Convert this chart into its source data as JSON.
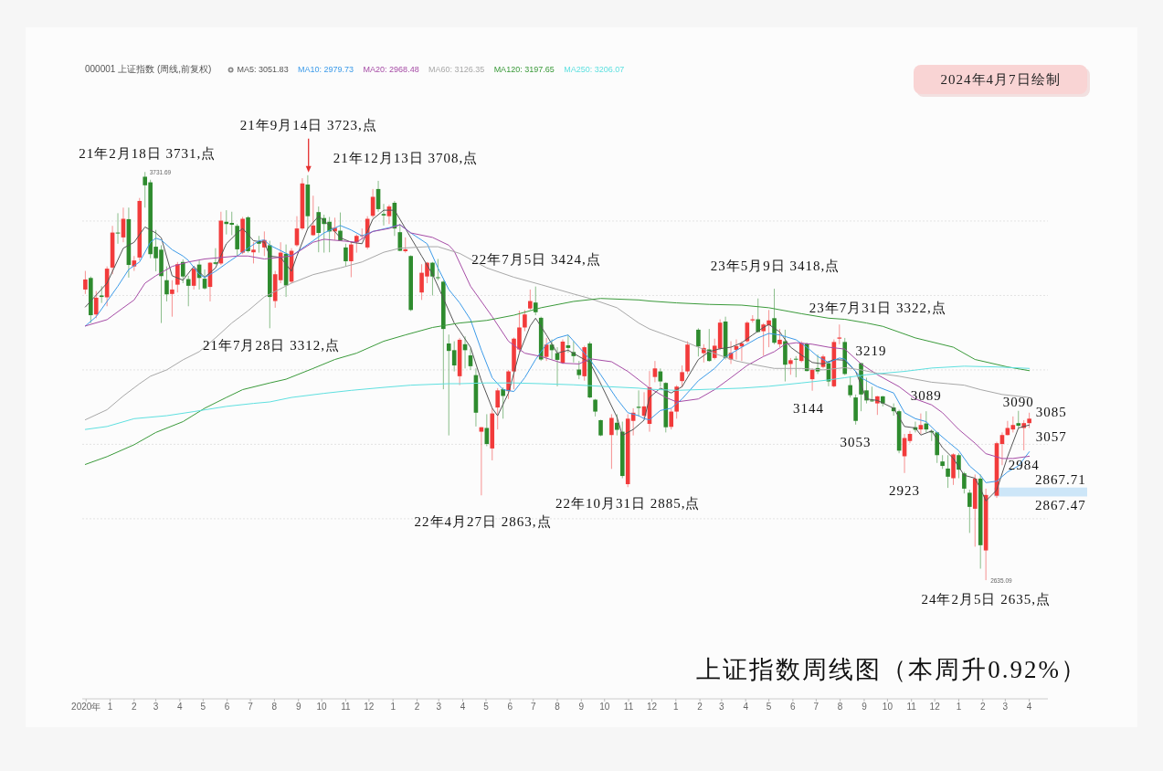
{
  "chart_data": {
    "type": "candlestick",
    "title": "上证指数周线图（本周升0.92%）",
    "legend_title": "000001 上证指数 (周线,前复权)",
    "legend": "top left",
    "grid": "y",
    "tick_labels": "x",
    "xlim": [
      "2020-11-26",
      "2024-04-25"
    ],
    "yticks": [
      {
        "value": 2800,
        "label": null
      },
      {
        "value": 3000,
        "label": null
      },
      {
        "value": 3200,
        "label": null
      },
      {
        "value": 3400,
        "label": null
      },
      {
        "value": 3600,
        "label": null
      }
    ],
    "xticks": [
      {
        "value": "2020-12",
        "label": "2020年"
      },
      {
        "value": "2021-01",
        "label": "1"
      },
      {
        "value": "2021-02",
        "label": "2"
      },
      {
        "value": "2021-03",
        "label": "3"
      },
      {
        "value": "2021-04",
        "label": "4"
      },
      {
        "value": "2021-05",
        "label": "5"
      },
      {
        "value": "2021-06",
        "label": "6"
      },
      {
        "value": "2021-07",
        "label": "7"
      },
      {
        "value": "2021-08",
        "label": "8"
      },
      {
        "value": "2021-09",
        "label": "9"
      },
      {
        "value": "2021-10",
        "label": "10"
      },
      {
        "value": "2021-11",
        "label": "11"
      },
      {
        "value": "2021-12",
        "label": "12"
      },
      {
        "value": "2022-01",
        "label": "1"
      },
      {
        "value": "2022-02",
        "label": "2"
      },
      {
        "value": "2022-03",
        "label": "3"
      },
      {
        "value": "2022-04",
        "label": "4"
      },
      {
        "value": "2022-05",
        "label": "5"
      },
      {
        "value": "2022-06",
        "label": "6"
      },
      {
        "value": "2022-07",
        "label": "7"
      },
      {
        "value": "2022-08",
        "label": "8"
      },
      {
        "value": "2022-09",
        "label": "9"
      },
      {
        "value": "2022-10",
        "label": "10"
      },
      {
        "value": "2022-11",
        "label": "11"
      },
      {
        "value": "2022-12",
        "label": "12"
      },
      {
        "value": "2023-01",
        "label": "1"
      },
      {
        "value": "2023-02",
        "label": "2"
      },
      {
        "value": "2023-03",
        "label": "3"
      },
      {
        "value": "2023-04",
        "label": "4"
      },
      {
        "value": "2023-05",
        "label": "5"
      },
      {
        "value": "2023-06",
        "label": "6"
      },
      {
        "value": "2023-07",
        "label": "7"
      },
      {
        "value": "2023-08",
        "label": "8"
      },
      {
        "value": "2023-09",
        "label": "9"
      },
      {
        "value": "2023-10",
        "label": "10"
      },
      {
        "value": "2023-11",
        "label": "11"
      },
      {
        "value": "2023-12",
        "label": "12"
      },
      {
        "value": "2024-01",
        "label": "1"
      },
      {
        "value": "2024-02",
        "label": "2"
      },
      {
        "value": "2024-03",
        "label": "3"
      },
      {
        "value": "2024-04",
        "label": "4"
      }
    ],
    "x": [
      "2020-11-30",
      "2020-12-07",
      "2020-12-14",
      "2020-12-21",
      "2020-12-28",
      "2021-01-04",
      "2021-01-11",
      "2021-01-18",
      "2021-01-25",
      "2021-02-01",
      "2021-02-08",
      "2021-02-15",
      "2021-02-22",
      "2021-03-01",
      "2021-03-08",
      "2021-03-15",
      "2021-03-22",
      "2021-03-29",
      "2021-04-05",
      "2021-04-12",
      "2021-04-19",
      "2021-04-26",
      "2021-05-03",
      "2021-05-10",
      "2021-05-17",
      "2021-05-24",
      "2021-05-31",
      "2021-06-07",
      "2021-06-14",
      "2021-06-21",
      "2021-06-28",
      "2021-07-05",
      "2021-07-12",
      "2021-07-19",
      "2021-07-26",
      "2021-08-02",
      "2021-08-09",
      "2021-08-16",
      "2021-08-23",
      "2021-08-30",
      "2021-09-06",
      "2021-09-13",
      "2021-09-20",
      "2021-09-27",
      "2021-10-04",
      "2021-10-11",
      "2021-10-18",
      "2021-10-25",
      "2021-11-01",
      "2021-11-08",
      "2021-11-15",
      "2021-11-22",
      "2021-11-29",
      "2021-12-06",
      "2021-12-13",
      "2021-12-20",
      "2021-12-27",
      "2022-01-03",
      "2022-01-10",
      "2022-01-17",
      "2022-01-24",
      "2022-02-07",
      "2022-02-14",
      "2022-02-21",
      "2022-02-28",
      "2022-03-07",
      "2022-03-14",
      "2022-03-21",
      "2022-03-28",
      "2022-04-04",
      "2022-04-11",
      "2022-04-18",
      "2022-04-25",
      "2022-05-02",
      "2022-05-09",
      "2022-05-16",
      "2022-05-23",
      "2022-05-30",
      "2022-06-06",
      "2022-06-13",
      "2022-06-20",
      "2022-06-27",
      "2022-07-04",
      "2022-07-11",
      "2022-07-18",
      "2022-07-25",
      "2022-08-01",
      "2022-08-08",
      "2022-08-15",
      "2022-08-22",
      "2022-08-29",
      "2022-09-05",
      "2022-09-12",
      "2022-09-19",
      "2022-09-26",
      "2022-10-10",
      "2022-10-17",
      "2022-10-24",
      "2022-10-31",
      "2022-11-07",
      "2022-11-14",
      "2022-11-21",
      "2022-11-28",
      "2022-12-05",
      "2022-12-12",
      "2022-12-19",
      "2022-12-26",
      "2023-01-02",
      "2023-01-09",
      "2023-01-16",
      "2023-01-30",
      "2023-02-06",
      "2023-02-13",
      "2023-02-20",
      "2023-02-27",
      "2023-03-06",
      "2023-03-13",
      "2023-03-20",
      "2023-03-27",
      "2023-04-03",
      "2023-04-10",
      "2023-04-17",
      "2023-04-24",
      "2023-05-01",
      "2023-05-08",
      "2023-05-15",
      "2023-05-22",
      "2023-05-29",
      "2023-06-05",
      "2023-06-12",
      "2023-06-19",
      "2023-06-26",
      "2023-07-03",
      "2023-07-10",
      "2023-07-17",
      "2023-07-24",
      "2023-07-31",
      "2023-08-07",
      "2023-08-14",
      "2023-08-21",
      "2023-08-28",
      "2023-09-04",
      "2023-09-11",
      "2023-09-18",
      "2023-09-25",
      "2023-10-09",
      "2023-10-16",
      "2023-10-23",
      "2023-10-30",
      "2023-11-06",
      "2023-11-13",
      "2023-11-20",
      "2023-11-27",
      "2023-12-04",
      "2023-12-11",
      "2023-12-18",
      "2023-12-25",
      "2024-01-01",
      "2024-01-08",
      "2024-01-15",
      "2024-01-22",
      "2024-01-29",
      "2024-02-05",
      "2024-02-19",
      "2024-02-26",
      "2024-03-04",
      "2024-03-11",
      "2024-03-18",
      "2024-03-25",
      "2024-04-01"
    ],
    "ohlc": [
      [
        3416,
        3466,
        3404,
        3443
      ],
      [
        3447,
        3451,
        3326,
        3347
      ],
      [
        3349,
        3412,
        3339,
        3394
      ],
      [
        3400,
        3425,
        3380,
        3396
      ],
      [
        3395,
        3478,
        3371,
        3472
      ],
      [
        3475,
        3587,
        3457,
        3569
      ],
      [
        3569,
        3621,
        3539,
        3567
      ],
      [
        3556,
        3636,
        3543,
        3606
      ],
      [
        3605,
        3636,
        3448,
        3482
      ],
      [
        3478,
        3506,
        3466,
        3494
      ],
      [
        3502,
        3662,
        3494,
        3654
      ],
      [
        3719,
        3731.69,
        3636,
        3696
      ],
      [
        3704,
        3711,
        3500,
        3511
      ],
      [
        3531,
        3576,
        3465,
        3500
      ],
      [
        3523,
        3535,
        3326,
        3452
      ],
      [
        3441,
        3478,
        3384,
        3403
      ],
      [
        3404,
        3441,
        3343,
        3416
      ],
      [
        3429,
        3490,
        3408,
        3484
      ],
      [
        3490,
        3497,
        3433,
        3451
      ],
      [
        3444,
        3453,
        3371,
        3426
      ],
      [
        3426,
        3478,
        3416,
        3472
      ],
      [
        3483,
        3494,
        3416,
        3447
      ],
      [
        3445,
        3470,
        3416,
        3419
      ],
      [
        3423,
        3490,
        3384,
        3488
      ],
      [
        3489,
        3527,
        3482,
        3485
      ],
      [
        3486,
        3625,
        3482,
        3601
      ],
      [
        3598,
        3629,
        3564,
        3592
      ],
      [
        3595,
        3625,
        3562,
        3590
      ],
      [
        3587,
        3592,
        3506,
        3524
      ],
      [
        3515,
        3611,
        3511,
        3606
      ],
      [
        3610,
        3613,
        3515,
        3519
      ],
      [
        3516,
        3543,
        3486,
        3523
      ],
      [
        3544,
        3560,
        3515,
        3539
      ],
      [
        3529,
        3572,
        3506,
        3549
      ],
      [
        3535,
        3547,
        3312,
        3396
      ],
      [
        3385,
        3466,
        3367,
        3457
      ],
      [
        3441,
        3543,
        3433,
        3515
      ],
      [
        3512,
        3537,
        3396,
        3427
      ],
      [
        3437,
        3527,
        3433,
        3520
      ],
      [
        3535,
        3613,
        3531,
        3580
      ],
      [
        3580,
        3715,
        3576,
        3701
      ],
      [
        3698,
        3723,
        3580,
        3613
      ],
      [
        3562,
        3668,
        3560,
        3588
      ],
      [
        3624,
        3639,
        3516,
        3568
      ],
      [
        3608,
        3617,
        3515,
        3592
      ],
      [
        3598,
        3611,
        3516,
        3572
      ],
      [
        3572,
        3609,
        3549,
        3582
      ],
      [
        3574,
        3623,
        3547,
        3547
      ],
      [
        3529,
        3539,
        3478,
        3492
      ],
      [
        3492,
        3546,
        3449,
        3537
      ],
      [
        3543,
        3564,
        3515,
        3560
      ],
      [
        3560,
        3580,
        3550,
        3562
      ],
      [
        3529,
        3613,
        3524,
        3606
      ],
      [
        3614,
        3686,
        3609,
        3665
      ],
      [
        3686,
        3708,
        3625,
        3632
      ],
      [
        3619,
        3646,
        3588,
        3615
      ],
      [
        3613,
        3644,
        3592,
        3639
      ],
      [
        3649,
        3654,
        3560,
        3580
      ],
      [
        3570,
        3592,
        3519,
        3520
      ],
      [
        3519,
        3556,
        3515,
        3524
      ],
      [
        3506,
        3508,
        3358,
        3361
      ],
      [
        3408,
        3484,
        3388,
        3461
      ],
      [
        3451,
        3490,
        3433,
        3488
      ],
      [
        3488,
        3490,
        3400,
        3451
      ],
      [
        3449,
        3498,
        3441,
        3447
      ],
      [
        3437,
        3441,
        3148,
        3310
      ],
      [
        3271,
        3295,
        3024,
        3251
      ],
      [
        3253,
        3277,
        3196,
        3212
      ],
      [
        3183,
        3286,
        3159,
        3281
      ],
      [
        3269,
        3290,
        3204,
        3253
      ],
      [
        3239,
        3257,
        3200,
        3210
      ],
      [
        3186,
        3204,
        3048,
        3085
      ],
      [
        3034,
        3046,
        2863,
        3046
      ],
      [
        3044,
        3081,
        2995,
        3001
      ],
      [
        2989,
        3097,
        2957,
        3083
      ],
      [
        3099,
        3151,
        3040,
        3145
      ],
      [
        3148,
        3153,
        3069,
        3130
      ],
      [
        3143,
        3200,
        3122,
        3196
      ],
      [
        3196,
        3287,
        3148,
        3284
      ],
      [
        3255,
        3359,
        3246,
        3314
      ],
      [
        3314,
        3361,
        3304,
        3349
      ],
      [
        3365,
        3416,
        3361,
        3385
      ],
      [
        3381,
        3424,
        3347,
        3355
      ],
      [
        3340,
        3343,
        3224,
        3228
      ],
      [
        3235,
        3286,
        3224,
        3268
      ],
      [
        3268,
        3282,
        3228,
        3253
      ],
      [
        3245,
        3261,
        3156,
        3227
      ],
      [
        3219,
        3282,
        3216,
        3276
      ],
      [
        3266,
        3294,
        3246,
        3259
      ],
      [
        3248,
        3277,
        3220,
        3237
      ],
      [
        3201,
        3224,
        3175,
        3186
      ],
      [
        3183,
        3265,
        3171,
        3261
      ],
      [
        3271,
        3276,
        3124,
        3126
      ],
      [
        3120,
        3122,
        3075,
        3088
      ],
      [
        3065,
        3066,
        3022,
        3024
      ],
      [
        3025,
        3081,
        2934,
        3071
      ],
      [
        3058,
        3081,
        3024,
        3039
      ],
      [
        3034,
        3061,
        2909,
        2915
      ],
      [
        2893,
        3081,
        2885,
        3069
      ],
      [
        3063,
        3097,
        3024,
        3085
      ],
      [
        3101,
        3145,
        3075,
        3098
      ],
      [
        3077,
        3140,
        3069,
        3102
      ],
      [
        3055,
        3197,
        3034,
        3153
      ],
      [
        3181,
        3224,
        3167,
        3204
      ],
      [
        3196,
        3204,
        3155,
        3169
      ],
      [
        3165,
        3167,
        3032,
        3046
      ],
      [
        3047,
        3096,
        3040,
        3088
      ],
      [
        3088,
        3159,
        3069,
        3155
      ],
      [
        3170,
        3212,
        3153,
        3194
      ],
      [
        3196,
        3277,
        3189,
        3268
      ],
      [
        3308,
        3312,
        3236,
        3263
      ],
      [
        3245,
        3269,
        3220,
        3259
      ],
      [
        3255,
        3310,
        3222,
        3224
      ],
      [
        3232,
        3284,
        3228,
        3265
      ],
      [
        3257,
        3336,
        3253,
        3327
      ],
      [
        3330,
        3343,
        3228,
        3232
      ],
      [
        3228,
        3277,
        3216,
        3246
      ],
      [
        3254,
        3282,
        3228,
        3264
      ],
      [
        3263,
        3277,
        3224,
        3271
      ],
      [
        3277,
        3331,
        3273,
        3327
      ],
      [
        3333,
        3347,
        3327,
        3336
      ],
      [
        3336,
        3392,
        3300,
        3302
      ],
      [
        3304,
        3326,
        3238,
        3322
      ],
      [
        3320,
        3361,
        3261,
        3333
      ],
      [
        3339,
        3418,
        3269,
        3273
      ],
      [
        3269,
        3310,
        3261,
        3281
      ],
      [
        3277,
        3308,
        3169,
        3214
      ],
      [
        3216,
        3232,
        3187,
        3226
      ],
      [
        3230,
        3237,
        3180,
        3228
      ],
      [
        3224,
        3277,
        3220,
        3272
      ],
      [
        3271,
        3273,
        3196,
        3197
      ],
      [
        3175,
        3204,
        3144,
        3200
      ],
      [
        3205,
        3241,
        3189,
        3196
      ],
      [
        3208,
        3241,
        3204,
        3236
      ],
      [
        3218,
        3224,
        3156,
        3169
      ],
      [
        3156,
        3282,
        3153,
        3275
      ],
      [
        3284,
        3322,
        3269,
        3287
      ],
      [
        3275,
        3286,
        3186,
        3189
      ],
      [
        3159,
        3183,
        3126,
        3132
      ],
      [
        3126,
        3134,
        3053,
        3063
      ],
      [
        3218,
        3219,
        3089,
        3134
      ],
      [
        3145,
        3179,
        3110,
        3118
      ],
      [
        3118,
        3155,
        3114,
        3116
      ],
      [
        3110,
        3130,
        3079,
        3129
      ],
      [
        3129,
        3130,
        3102,
        3110
      ],
      [
        3099,
        3110,
        3077,
        3089
      ],
      [
        3089,
        3093,
        2976,
        2983
      ],
      [
        2968,
        3028,
        2923,
        3017
      ],
      [
        3009,
        3036,
        3003,
        3028
      ],
      [
        3046,
        3061,
        3032,
        3039
      ],
      [
        3040,
        3083,
        3028,
        3052
      ],
      [
        3056,
        3089,
        3032,
        3040
      ],
      [
        3036,
        3040,
        3009,
        3032
      ],
      [
        3032,
        3034,
        2950,
        2971
      ],
      [
        2954,
        2971,
        2934,
        2942
      ],
      [
        2935,
        2971,
        2883,
        2913
      ],
      [
        2909,
        2976,
        2891,
        2973
      ],
      [
        2971,
        2976,
        2909,
        2932
      ],
      [
        2922,
        2926,
        2868,
        2881
      ],
      [
        2870,
        2878,
        2762,
        2832
      ],
      [
        2827,
        2919,
        2725,
        2908
      ],
      [
        2908,
        2919,
        2666,
        2729
      ],
      [
        2715,
        2881,
        2635.09,
        2864
      ],
      [
        2862,
        3007,
        2856,
        3003
      ],
      [
        3001,
        3032,
        2944,
        3025
      ],
      [
        3025,
        3063,
        3024,
        3044
      ],
      [
        3040,
        3075,
        3032,
        3052
      ],
      [
        3057,
        3090,
        3044,
        3050
      ],
      [
        3044,
        3065,
        2984,
        3057
      ],
      [
        3057,
        3085,
        3044,
        3069
      ]
    ],
    "series": [
      {
        "name": "MA5: 3051.83",
        "color": "#555555",
        "type": "line",
        "x": [
          "2020-11-30",
          "2020-12-28",
          "2021-01-18",
          "2021-02-01",
          "2021-02-15",
          "2021-03-01",
          "2021-03-08",
          "2021-03-22",
          "2021-04-05",
          "2021-04-19",
          "2021-05-03",
          "2021-05-17",
          "2021-05-31",
          "2021-06-14",
          "2021-06-21",
          "2021-07-05",
          "2021-07-19",
          "2021-07-26",
          "2021-08-09",
          "2021-08-23",
          "2021-08-30",
          "2021-09-13",
          "2021-09-27",
          "2021-10-11",
          "2021-10-25",
          "2021-11-08",
          "2021-11-22",
          "2021-12-06",
          "2021-12-20",
          "2022-01-03",
          "2022-01-17",
          "2022-02-07",
          "2022-02-21",
          "2022-03-07",
          "2022-03-21",
          "2022-03-28",
          "2022-04-11",
          "2022-04-25",
          "2022-05-09",
          "2022-05-16",
          "2022-05-30",
          "2022-06-13",
          "2022-06-27",
          "2022-07-04",
          "2022-07-18",
          "2022-08-01",
          "2022-08-15",
          "2022-08-29",
          "2022-09-12",
          "2022-09-26",
          "2022-10-17",
          "2022-10-24",
          "2022-11-07",
          "2022-11-21",
          "2022-11-28",
          "2022-12-12",
          "2022-12-26",
          "2023-01-09",
          "2023-01-30",
          "2023-02-13",
          "2023-02-27",
          "2023-03-13",
          "2023-03-27",
          "2023-04-10",
          "2023-04-24",
          "2023-05-01",
          "2023-05-15",
          "2023-05-29",
          "2023-06-12",
          "2023-06-26",
          "2023-07-10",
          "2023-07-24",
          "2023-08-07",
          "2023-08-21",
          "2023-09-04",
          "2023-09-18",
          "2023-10-09",
          "2023-10-23",
          "2023-11-06",
          "2023-11-13",
          "2023-11-27",
          "2023-12-11",
          "2023-12-25",
          "2024-01-08",
          "2024-01-22",
          "2024-01-29",
          "2024-02-05",
          "2024-02-19",
          "2024-03-04",
          "2024-03-18",
          "2024-04-01"
        ],
        "values": [
          3369,
          3433,
          3527,
          3543,
          3584,
          3568,
          3555,
          3453,
          3441,
          3478,
          3449,
          3474,
          3539,
          3568,
          3580,
          3547,
          3543,
          3506,
          3502,
          3465,
          3506,
          3580,
          3613,
          3588,
          3555,
          3543,
          3539,
          3605,
          3629,
          3629,
          3580,
          3506,
          3457,
          3392,
          3326,
          3305,
          3261,
          3171,
          3097,
          3077,
          3138,
          3245,
          3318,
          3339,
          3294,
          3245,
          3253,
          3236,
          3220,
          3163,
          3073,
          3024,
          3040,
          3065,
          3126,
          3151,
          3138,
          3155,
          3228,
          3249,
          3257,
          3261,
          3273,
          3294,
          3314,
          3322,
          3302,
          3261,
          3240,
          3220,
          3216,
          3228,
          3226,
          3196,
          3122,
          3118,
          3097,
          3048,
          3044,
          3025,
          3036,
          2991,
          2962,
          2917,
          2909,
          2881,
          2848,
          2877,
          2967,
          3044,
          3052
        ]
      },
      {
        "name": "MA10: 2979.73",
        "color": "#3d9be9",
        "type": "line",
        "x": [
          "2020-11-30",
          "2020-12-14",
          "2020-12-28",
          "2021-01-11",
          "2021-01-25",
          "2021-02-08",
          "2021-02-22",
          "2021-03-01",
          "2021-03-08",
          "2021-03-22",
          "2021-04-05",
          "2021-04-12",
          "2021-04-26",
          "2021-05-03",
          "2021-05-17",
          "2021-05-31",
          "2021-06-14",
          "2021-06-28",
          "2021-07-12",
          "2021-07-19",
          "2021-07-26",
          "2021-08-23",
          "2021-09-06",
          "2021-09-20",
          "2021-10-04",
          "2021-10-25",
          "2021-11-08",
          "2021-11-22",
          "2021-12-06",
          "2021-12-27",
          "2022-01-10",
          "2022-01-24",
          "2022-02-14",
          "2022-02-28",
          "2022-03-14",
          "2022-03-28",
          "2022-04-11",
          "2022-04-25",
          "2022-05-09",
          "2022-05-23",
          "2022-06-06",
          "2022-06-20",
          "2022-07-04",
          "2022-07-18",
          "2022-08-01",
          "2022-08-15",
          "2022-08-29",
          "2022-09-12",
          "2022-09-26",
          "2022-10-17",
          "2022-10-31",
          "2022-11-14",
          "2022-11-21",
          "2022-11-28",
          "2022-12-12",
          "2022-12-26",
          "2023-01-09",
          "2023-01-30",
          "2023-02-20",
          "2023-03-06",
          "2023-03-27",
          "2023-04-17",
          "2023-05-01",
          "2023-05-15",
          "2023-06-05",
          "2023-06-19",
          "2023-07-03",
          "2023-07-17",
          "2023-07-31",
          "2023-08-07",
          "2023-08-28",
          "2023-09-18",
          "2023-10-09",
          "2023-10-23",
          "2023-11-06",
          "2023-11-20",
          "2023-12-04",
          "2023-12-18",
          "2024-01-01",
          "2024-01-15",
          "2024-01-29",
          "2024-02-05",
          "2024-02-19",
          "2024-03-04",
          "2024-03-18",
          "2024-04-01"
        ],
        "values": [
          3318,
          3343,
          3384,
          3425,
          3470,
          3490,
          3543,
          3554,
          3549,
          3523,
          3506,
          3494,
          3457,
          3448,
          3465,
          3486,
          3506,
          3527,
          3547,
          3549,
          3535,
          3506,
          3527,
          3547,
          3568,
          3588,
          3576,
          3560,
          3572,
          3582,
          3590,
          3568,
          3539,
          3474,
          3416,
          3380,
          3335,
          3253,
          3179,
          3147,
          3142,
          3179,
          3228,
          3269,
          3286,
          3294,
          3261,
          3228,
          3187,
          3122,
          3085,
          3077,
          3069,
          3066,
          3091,
          3097,
          3122,
          3171,
          3204,
          3235,
          3261,
          3286,
          3298,
          3294,
          3281,
          3261,
          3236,
          3220,
          3232,
          3229,
          3179,
          3155,
          3138,
          3085,
          3069,
          3061,
          3032,
          3007,
          2983,
          2942,
          2917,
          2897,
          2901,
          2926,
          2942,
          2980
        ]
      },
      {
        "name": "MA20: 2968.48",
        "color": "#a64ca6",
        "type": "line",
        "x": [
          "2020-11-30",
          "2020-12-28",
          "2021-01-18",
          "2021-02-01",
          "2021-02-15",
          "2021-03-01",
          "2021-03-22",
          "2021-04-12",
          "2021-05-03",
          "2021-05-24",
          "2021-06-14",
          "2021-06-28",
          "2021-07-19",
          "2021-08-23",
          "2021-09-20",
          "2021-10-04",
          "2021-10-25",
          "2021-11-15",
          "2021-12-06",
          "2021-12-27",
          "2022-01-10",
          "2022-01-24",
          "2022-02-21",
          "2022-03-14",
          "2022-03-21",
          "2022-04-11",
          "2022-05-09",
          "2022-05-30",
          "2022-06-20",
          "2022-07-11",
          "2022-08-08",
          "2022-08-29",
          "2022-09-12",
          "2022-10-10",
          "2022-10-31",
          "2022-11-28",
          "2022-12-19",
          "2023-01-02",
          "2023-01-30",
          "2023-02-20",
          "2023-03-13",
          "2023-04-03",
          "2023-04-24",
          "2023-05-08",
          "2023-05-22",
          "2023-06-05",
          "2023-06-26",
          "2023-07-17",
          "2023-08-07",
          "2023-08-28",
          "2023-09-18",
          "2023-10-16",
          "2023-11-06",
          "2023-11-27",
          "2023-12-11",
          "2024-01-01",
          "2024-01-22",
          "2024-02-05",
          "2024-02-26",
          "2024-03-11",
          "2024-04-01"
        ],
        "values": [
          3318,
          3335,
          3367,
          3388,
          3433,
          3453,
          3478,
          3490,
          3498,
          3502,
          3506,
          3506,
          3498,
          3506,
          3543,
          3551,
          3547,
          3543,
          3572,
          3580,
          3590,
          3568,
          3556,
          3535,
          3519,
          3425,
          3343,
          3277,
          3245,
          3236,
          3218,
          3216,
          3230,
          3222,
          3196,
          3151,
          3126,
          3114,
          3122,
          3147,
          3179,
          3212,
          3236,
          3249,
          3269,
          3273,
          3269,
          3261,
          3256,
          3216,
          3187,
          3155,
          3122,
          3106,
          3085,
          3040,
          3003,
          2975,
          2962,
          2962,
          2968
        ]
      },
      {
        "name": "MA60: 3126.35",
        "color": "#a8a8a8",
        "type": "line",
        "x": [
          "2020-11-30",
          "2020-12-28",
          "2021-01-18",
          "2021-02-08",
          "2021-02-22",
          "2021-03-15",
          "2021-04-05",
          "2021-04-26",
          "2021-05-17",
          "2021-06-07",
          "2021-06-28",
          "2021-07-19",
          "2021-08-23",
          "2021-09-20",
          "2021-10-25",
          "2021-11-22",
          "2021-12-20",
          "2022-01-10",
          "2022-02-14",
          "2022-02-28",
          "2022-03-28",
          "2022-05-02",
          "2022-06-06",
          "2022-07-11",
          "2022-08-22",
          "2022-09-12",
          "2022-10-17",
          "2022-11-14",
          "2022-11-28",
          "2022-12-19",
          "2023-01-16",
          "2023-02-13",
          "2023-03-20",
          "2023-04-17",
          "2023-05-08",
          "2023-06-12",
          "2023-07-10",
          "2023-08-07",
          "2023-08-28",
          "2023-09-18",
          "2023-10-16",
          "2023-11-06",
          "2023-11-27",
          "2023-12-18",
          "2024-01-08",
          "2024-01-29",
          "2024-02-26",
          "2024-04-01"
        ],
        "values": [
          3066,
          3093,
          3130,
          3163,
          3183,
          3200,
          3227,
          3249,
          3286,
          3326,
          3359,
          3396,
          3433,
          3456,
          3474,
          3490,
          3516,
          3527,
          3531,
          3531,
          3513,
          3474,
          3449,
          3429,
          3404,
          3392,
          3367,
          3326,
          3310,
          3294,
          3273,
          3249,
          3224,
          3212,
          3204,
          3204,
          3200,
          3206,
          3200,
          3191,
          3183,
          3175,
          3167,
          3163,
          3159,
          3147,
          3134,
          3126
        ]
      },
      {
        "name": "MA120: 3197.65",
        "color": "#3a9a3a",
        "type": "line",
        "x": [
          "2020-11-30",
          "2020-12-28",
          "2021-02-01",
          "2021-03-01",
          "2021-04-05",
          "2021-05-03",
          "2021-05-31",
          "2021-06-21",
          "2021-07-26",
          "2021-08-16",
          "2021-09-20",
          "2021-10-18",
          "2021-11-15",
          "2021-12-20",
          "2022-01-17",
          "2022-02-21",
          "2022-03-28",
          "2022-05-02",
          "2022-06-06",
          "2022-07-11",
          "2022-08-22",
          "2022-09-26",
          "2022-11-14",
          "2022-11-28",
          "2023-01-02",
          "2023-02-13",
          "2023-03-27",
          "2023-05-01",
          "2023-06-12",
          "2023-07-17",
          "2023-08-07",
          "2023-09-04",
          "2023-09-25",
          "2023-11-06",
          "2023-12-25",
          "2024-01-22",
          "2024-03-04",
          "2024-04-01"
        ],
        "values": [
          2946,
          2967,
          2999,
          3032,
          3061,
          3097,
          3126,
          3147,
          3165,
          3175,
          3204,
          3228,
          3245,
          3277,
          3294,
          3314,
          3326,
          3333,
          3347,
          3367,
          3384,
          3392,
          3388,
          3385,
          3380,
          3376,
          3374,
          3367,
          3351,
          3339,
          3336,
          3326,
          3317,
          3286,
          3261,
          3228,
          3208,
          3198
        ]
      },
      {
        "name": "MA250: 3206.07",
        "color": "#5fe0e0",
        "type": "line",
        "x": [
          "2020-11-30",
          "2020-12-28",
          "2021-02-01",
          "2021-03-15",
          "2021-04-19",
          "2021-05-31",
          "2021-07-05",
          "2021-07-26",
          "2021-08-23",
          "2021-10-04",
          "2021-11-08",
          "2021-12-20",
          "2022-01-24",
          "2022-03-14",
          "2022-03-28",
          "2022-05-02",
          "2022-06-06",
          "2022-07-11",
          "2022-08-22",
          "2022-09-26",
          "2022-11-14",
          "2022-11-28",
          "2023-01-02",
          "2023-02-13",
          "2023-03-27",
          "2023-05-01",
          "2023-06-12",
          "2023-07-17",
          "2023-08-07",
          "2023-09-04",
          "2023-10-23",
          "2023-11-27",
          "2024-01-08",
          "2024-02-19",
          "2024-04-01"
        ],
        "values": [
          3040,
          3048,
          3069,
          3077,
          3088,
          3102,
          3110,
          3114,
          3126,
          3137,
          3145,
          3153,
          3159,
          3163,
          3163,
          3165,
          3165,
          3163,
          3160,
          3156,
          3151,
          3148,
          3145,
          3148,
          3151,
          3156,
          3165,
          3173,
          3179,
          3187,
          3196,
          3205,
          3210,
          3208,
          3204
        ]
      }
    ],
    "bands": [
      {
        "axis": "y",
        "from": 2860,
        "to": 2884,
        "color": "#cde6f8"
      }
    ],
    "annotations": [
      {
        "text": "21年2月18日 3731,点",
        "x": "2021-02-18",
        "y": 3731
      },
      {
        "text": "21年9月14日 3723,点",
        "x": "2021-09-14",
        "y": 3723
      },
      {
        "text": "21年12月13日 3708,点",
        "x": "2021-12-13",
        "y": 3708
      },
      {
        "text": "21年7月28日 3312,点",
        "x": "2021-07-28",
        "y": 3312
      },
      {
        "text": "22年4月27日 2863,点",
        "x": "2022-04-27",
        "y": 2863
      },
      {
        "text": "22年7月5日 3424,点",
        "x": "2022-07-05",
        "y": 3424
      },
      {
        "text": "22年10月31日 2885,点",
        "x": "2022-10-31",
        "y": 2885
      },
      {
        "text": "23年5月9日 3418,点",
        "x": "2023-05-09",
        "y": 3418
      },
      {
        "text": "23年7月31日 3322,点",
        "x": "2023-07-31",
        "y": 3322
      },
      {
        "text": "24年2月5日 2635,点",
        "x": "2024-02-05",
        "y": 2635
      },
      {
        "text": "3219",
        "x": "2023-08-28",
        "y": 3219
      },
      {
        "text": "3144",
        "x": "2023-06-26",
        "y": 3144
      },
      {
        "text": "3053",
        "x": "2023-08-21",
        "y": 3053
      },
      {
        "text": "3089",
        "x": "2023-11-20",
        "y": 3089
      },
      {
        "text": "2923",
        "x": "2023-10-23",
        "y": 2923
      },
      {
        "text": "3090",
        "x": "2024-03-18",
        "y": 3090
      },
      {
        "text": "3085",
        "x": "2024-04-01",
        "y": 3085
      },
      {
        "text": "3057",
        "x": "2024-03-25",
        "y": 3057
      },
      {
        "text": "2984",
        "x": "2024-03-25",
        "y": 2984
      },
      {
        "text": "3731.69",
        "x": "2021-02-15",
        "y": 3731.69
      },
      {
        "text": "2635.09",
        "x": "2024-02-05",
        "y": 2635.09
      },
      "2867.71",
      "2867.47",
      "2024年4月7日绘制"
    ]
  }
}
